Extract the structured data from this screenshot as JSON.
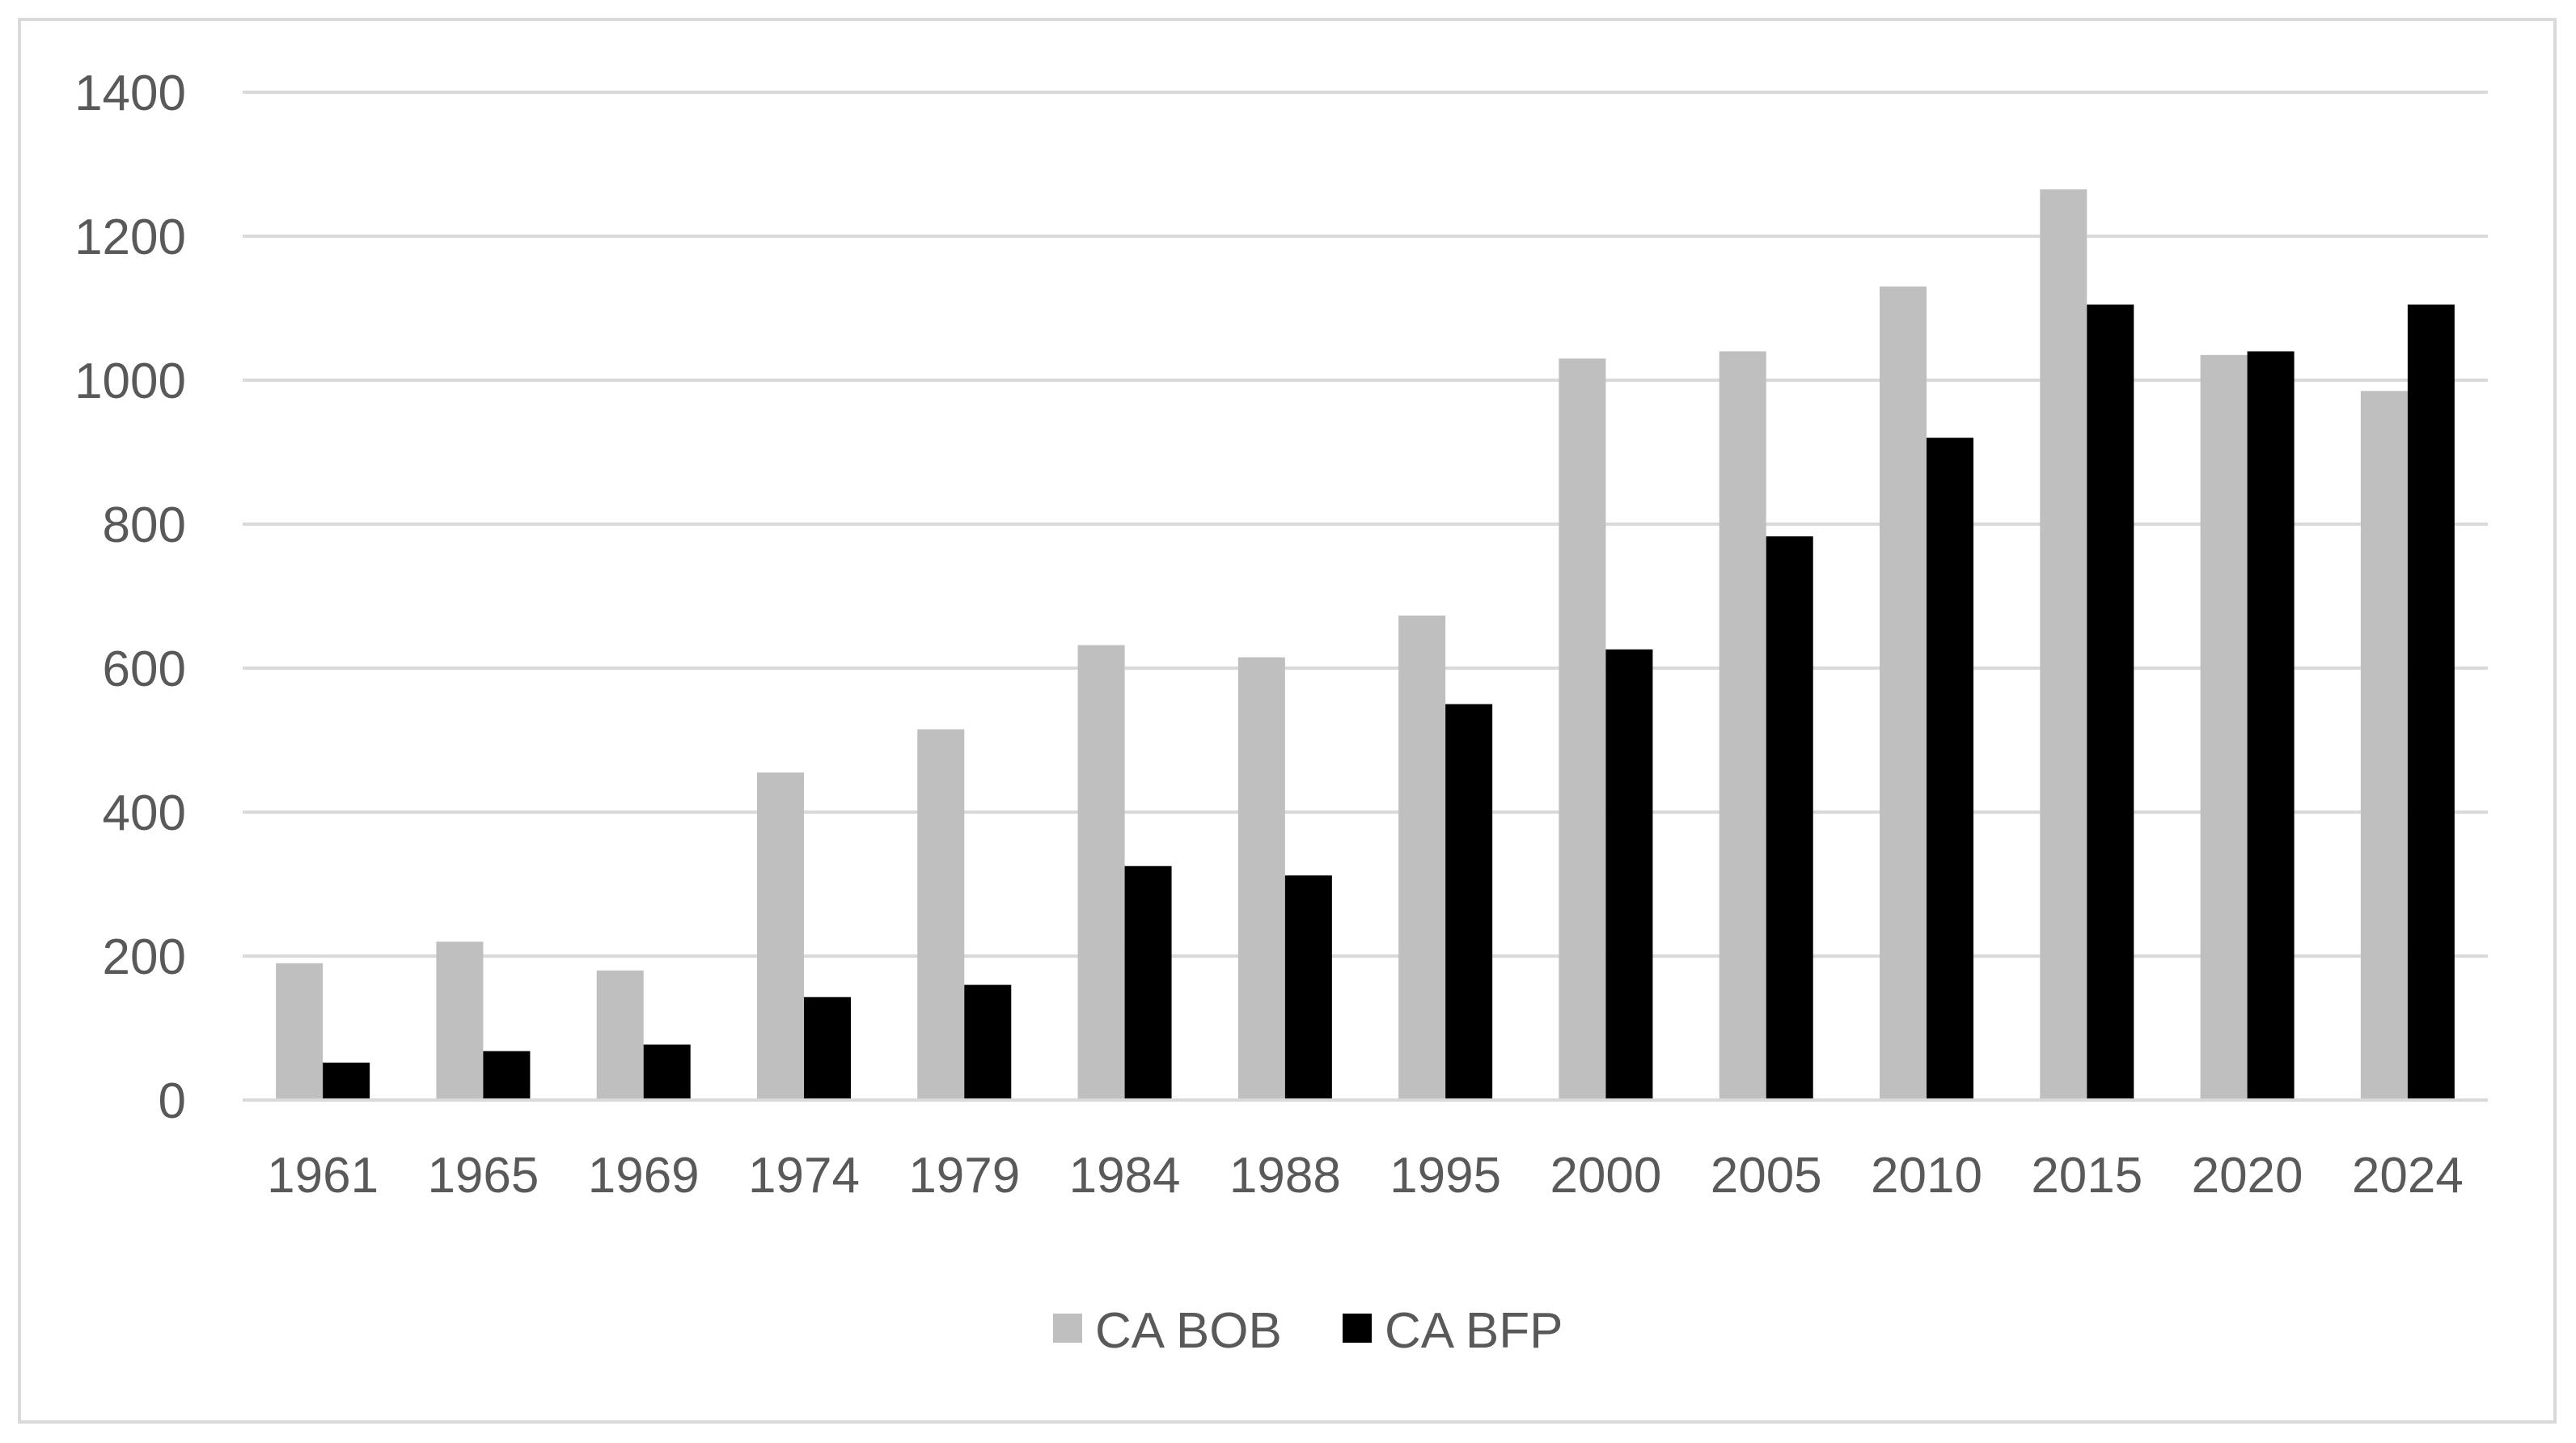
{
  "chart_data": {
    "type": "bar",
    "categories": [
      "1961",
      "1965",
      "1969",
      "1974",
      "1979",
      "1984",
      "1988",
      "1995",
      "2000",
      "2005",
      "2010",
      "2015",
      "2020",
      "2024"
    ],
    "series": [
      {
        "name": "CA BOB",
        "color": "#bfbfbf",
        "values": [
          190,
          220,
          180,
          455,
          515,
          632,
          615,
          673,
          1030,
          1040,
          1130,
          1265,
          1035,
          985
        ]
      },
      {
        "name": "CA BFP",
        "color": "#000000",
        "values": [
          52,
          68,
          77,
          143,
          160,
          325,
          312,
          550,
          626,
          783,
          920,
          1105,
          1040,
          1105
        ]
      }
    ],
    "yticks": [
      "0",
      "200",
      "400",
      "600",
      "800",
      "1000",
      "1200",
      "1400"
    ],
    "ylim": [
      0,
      1400
    ],
    "grid": true,
    "legend_position": "bottom-center",
    "title": "",
    "xlabel": "",
    "ylabel": ""
  }
}
